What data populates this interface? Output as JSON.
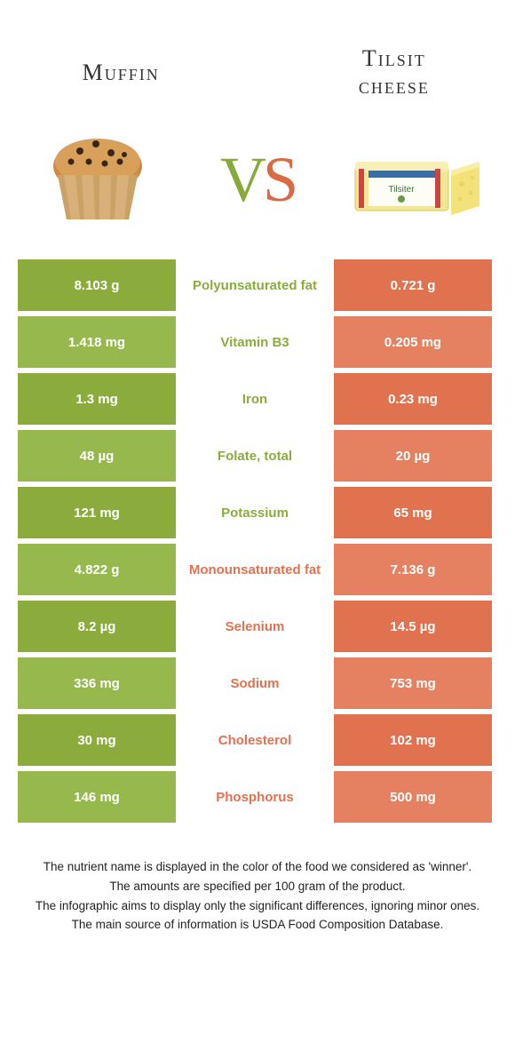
{
  "colors": {
    "left_food": "#8bac3d",
    "left_food_alt": "#97b84d",
    "right_food": "#e0724f",
    "right_food_alt": "#e58161",
    "background": "#ffffff",
    "text_dark": "#333333"
  },
  "titles": {
    "left": "Muffin",
    "right": "Tilsit\ncheese"
  },
  "vs": {
    "v": "V",
    "s": "S"
  },
  "rows": [
    {
      "left": "8.103 g",
      "nutrient": "Polyunsaturated fat",
      "right": "0.721 g",
      "winner": "left"
    },
    {
      "left": "1.418 mg",
      "nutrient": "Vitamin B3",
      "right": "0.205 mg",
      "winner": "left"
    },
    {
      "left": "1.3 mg",
      "nutrient": "Iron",
      "right": "0.23 mg",
      "winner": "left"
    },
    {
      "left": "48 µg",
      "nutrient": "Folate, total",
      "right": "20 µg",
      "winner": "left"
    },
    {
      "left": "121 mg",
      "nutrient": "Potassium",
      "right": "65 mg",
      "winner": "left"
    },
    {
      "left": "4.822 g",
      "nutrient": "Monounsaturated fat",
      "right": "7.136 g",
      "winner": "right"
    },
    {
      "left": "8.2 µg",
      "nutrient": "Selenium",
      "right": "14.5 µg",
      "winner": "right"
    },
    {
      "left": "336 mg",
      "nutrient": "Sodium",
      "right": "753 mg",
      "winner": "right"
    },
    {
      "left": "30 mg",
      "nutrient": "Cholesterol",
      "right": "102 mg",
      "winner": "right"
    },
    {
      "left": "146 mg",
      "nutrient": "Phosphorus",
      "right": "500 mg",
      "winner": "right"
    }
  ],
  "footnotes": [
    "The nutrient name is displayed in the color of the food we considered as 'winner'.",
    "The amounts are specified per 100 gram of the product.",
    "The infographic aims to display only the significant differences, ignoring minor ones.",
    "The main source of information is USDA Food Composition Database."
  ]
}
